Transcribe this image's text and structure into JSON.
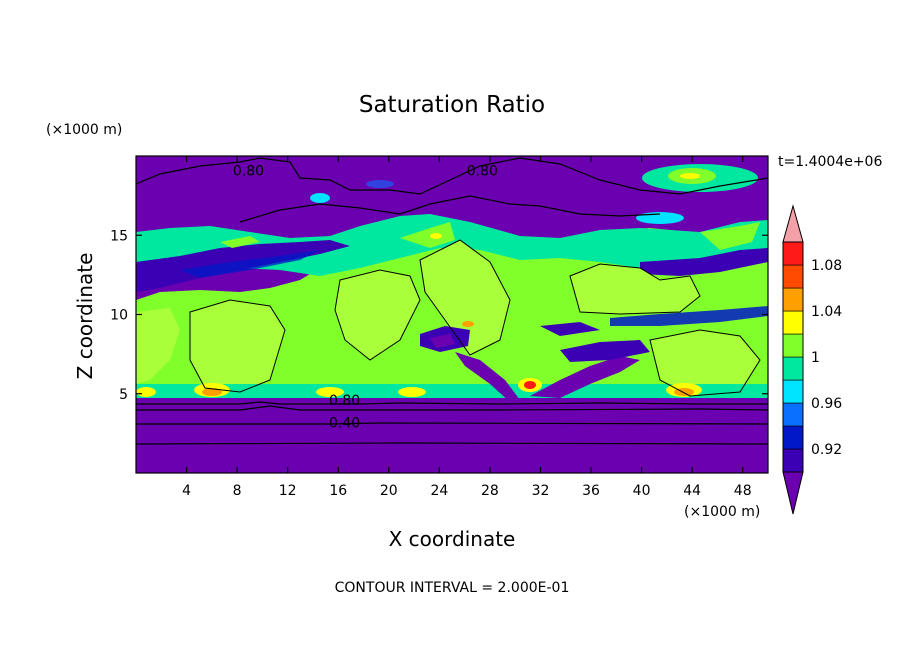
{
  "chart_data": {
    "type": "heatmap",
    "title": "Saturation Ratio",
    "xlabel": "X coordinate",
    "ylabel": "Z coordinate",
    "x_unit": "(×1000 m)",
    "y_unit": "(×1000 m)",
    "xlim": [
      0,
      50
    ],
    "ylim": [
      0,
      20
    ],
    "x_ticks": [
      4,
      8,
      12,
      16,
      20,
      24,
      28,
      32,
      36,
      40,
      44,
      48
    ],
    "y_ticks": [
      5,
      10,
      15
    ],
    "time_label": "t=1.4004e+06",
    "footnote": "CONTOUR INTERVAL = 2.000E-01",
    "contour_labels": [
      {
        "text": "0.80",
        "x": 8.9,
        "y": 19.1
      },
      {
        "text": "0.80",
        "x": 27.4,
        "y": 19.1
      },
      {
        "text": "0.80",
        "x": 16.5,
        "y": 4.6
      },
      {
        "text": "0.40",
        "x": 16.5,
        "y": 3.2
      }
    ],
    "colorbar": {
      "levels": [
        0.9,
        0.92,
        0.94,
        0.96,
        0.98,
        1.0,
        1.02,
        1.04,
        1.06,
        1.08,
        1.1
      ],
      "tick_labels": [
        "0.92",
        "0.96",
        "1",
        "1.04",
        "1.08"
      ],
      "tick_values": [
        0.92,
        0.96,
        1.0,
        1.04,
        1.08
      ],
      "colors": [
        "#6a00b0",
        "#3c00b4",
        "#0018c8",
        "#0a70ff",
        "#00e4ff",
        "#00e8a0",
        "#80ff2a",
        "#ffff00",
        "#ffa000",
        "#ff4a00",
        "#ff1a1a"
      ],
      "extend_low_color": "#6a00b0",
      "extend_high_color": "#f4a0a8"
    }
  }
}
